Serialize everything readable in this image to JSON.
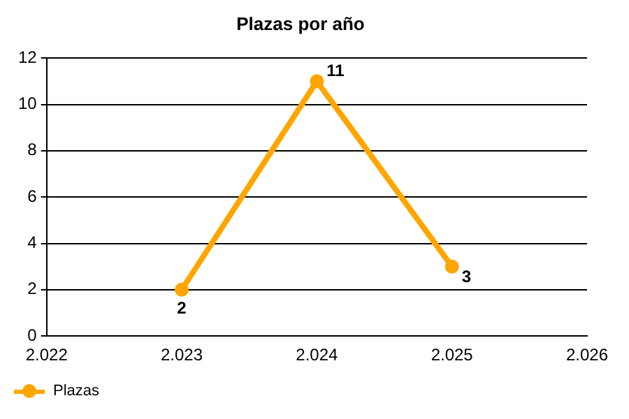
{
  "chart_data": {
    "type": "line",
    "title": "Plazas por año",
    "categories": [
      "2.022",
      "2.023",
      "2.024",
      "2.025",
      "2.026"
    ],
    "series": [
      {
        "name": "Plazas",
        "color": "#ffa500",
        "values": [
          null,
          2,
          11,
          3,
          null
        ]
      }
    ],
    "ylim": [
      0,
      12
    ],
    "yticks": [
      0,
      2,
      4,
      6,
      8,
      10,
      12
    ],
    "grid": "y",
    "legend": "bottom left",
    "marker": "circle",
    "line_style": "solid",
    "data_labels": true
  }
}
